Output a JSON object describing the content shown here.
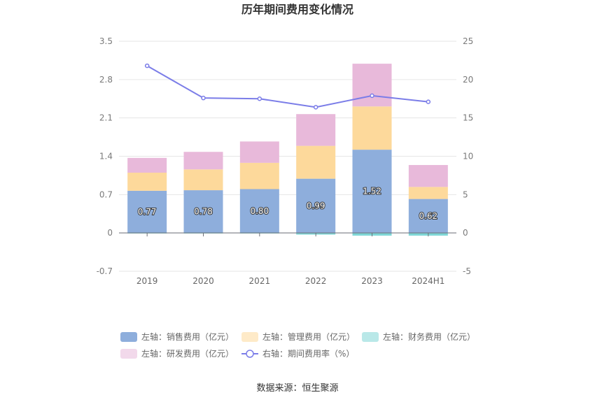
{
  "chart_data": {
    "type": "bar",
    "title": "历年期间费用变化情况",
    "source": "数据来源：恒生聚源",
    "categories": [
      "2019",
      "2020",
      "2021",
      "2022",
      "2023",
      "2024H1"
    ],
    "left_axis": {
      "min": -0.7,
      "max": 3.5,
      "ticks": [
        "3.5",
        "2.8",
        "2.1",
        "1.4",
        "0.7",
        "0",
        "-0.7"
      ]
    },
    "right_axis": {
      "min": -5,
      "max": 25,
      "ticks": [
        "25",
        "20",
        "15",
        "10",
        "5",
        "0",
        "-5"
      ]
    },
    "series": [
      {
        "name": "左轴：销售费用（亿元）",
        "axis": "left",
        "kind": "bar",
        "color": "#8eaedc",
        "values": [
          0.77,
          0.78,
          0.8,
          0.99,
          1.52,
          0.62
        ],
        "labels": [
          "0.77",
          "0.78",
          "0.80",
          "0.99",
          "1.52",
          "0.62"
        ]
      },
      {
        "name": "左轴：管理费用（亿元）",
        "axis": "left",
        "kind": "bar",
        "color": "#fdd99b",
        "values": [
          0.33,
          0.38,
          0.48,
          0.6,
          0.79,
          0.22
        ]
      },
      {
        "name": "左轴：财务费用（亿元）",
        "axis": "left",
        "kind": "bar",
        "color": "#7fd6d6",
        "values": [
          -0.01,
          -0.01,
          -0.01,
          -0.03,
          -0.05,
          -0.05
        ]
      },
      {
        "name": "左轴：研发费用（亿元）",
        "axis": "left",
        "kind": "bar",
        "color": "#e8b9da",
        "values": [
          0.27,
          0.32,
          0.39,
          0.58,
          0.78,
          0.4
        ]
      },
      {
        "name": "右轴：期间费用率（%）",
        "axis": "right",
        "kind": "line",
        "color": "#7b7de8",
        "values": [
          21.8,
          17.6,
          17.5,
          16.4,
          17.9,
          17.1
        ]
      }
    ],
    "legend_position": "bottom",
    "grid": true
  }
}
